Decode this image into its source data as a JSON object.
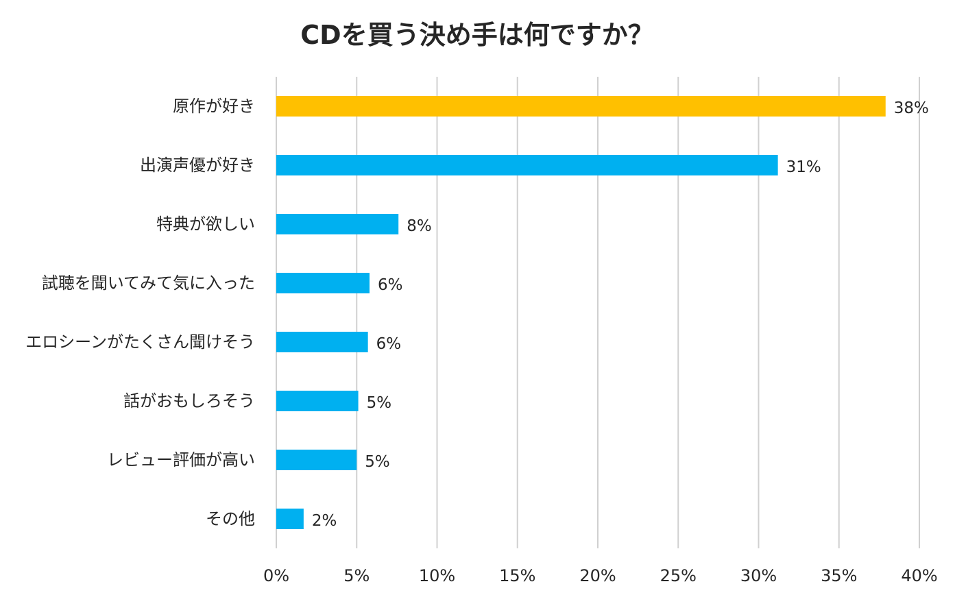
{
  "chart_data": {
    "type": "bar",
    "orientation": "horizontal",
    "title": "CDを買う決め手は何ですか？",
    "categories": [
      "原作が好き",
      "出演声優が好き",
      "特典が欲しい",
      "試聴を聞いてみて気に入った",
      "エロシーンがたくさん聞けそう",
      "話がおもしろそう",
      "レビュー評価が高い",
      "その他"
    ],
    "values": [
      38,
      31,
      8,
      6,
      6,
      5,
      5,
      2
    ],
    "value_labels": [
      "38%",
      "31%",
      "8%",
      "6%",
      "6%",
      "5%",
      "5%",
      "2%"
    ],
    "bar_values_precise": [
      37.9,
      31.2,
      7.6,
      5.8,
      5.7,
      5.1,
      5.0,
      1.7
    ],
    "xlim": [
      0,
      40
    ],
    "xticks": [
      0,
      5,
      10,
      15,
      20,
      25,
      30,
      35,
      40
    ],
    "xtick_labels": [
      "0%",
      "5%",
      "10%",
      "15%",
      "20%",
      "25%",
      "30%",
      "35%",
      "40%"
    ],
    "xlabel": "",
    "ylabel": "",
    "grid": true,
    "legend": "none",
    "colors": {
      "highlight": "#FFC000",
      "default": "#00B0F0",
      "grid": "#D0D0D0",
      "text": "#262626"
    },
    "highlight_index": 0
  }
}
